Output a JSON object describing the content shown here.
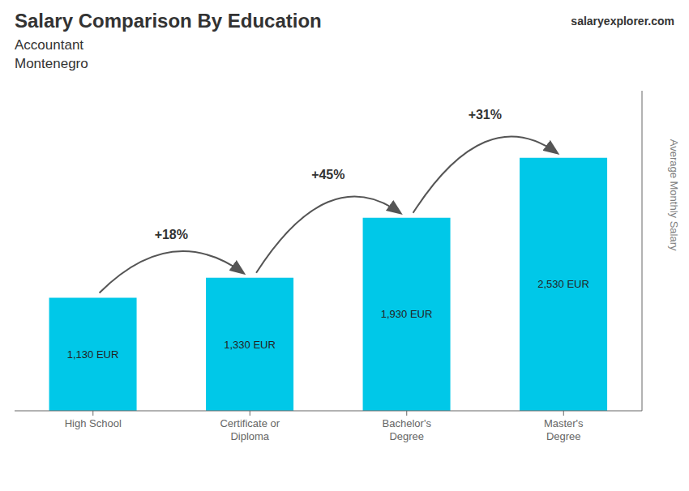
{
  "chart_data": {
    "type": "bar",
    "title": "Salary Comparison By Education",
    "subtitle": [
      "Accountant",
      "Montenegro"
    ],
    "source": "salaryexplorer.com",
    "ylabel": "Average Monthly Salary",
    "categories": [
      "High School",
      "Certificate or\nDiploma",
      "Bachelor's\nDegree",
      "Master's\nDegree"
    ],
    "values": [
      1130,
      1330,
      1930,
      2530
    ],
    "value_labels": [
      "1,130 EUR",
      "1,330 EUR",
      "1,930 EUR",
      "2,530 EUR"
    ],
    "data_labels": true,
    "annotations": [
      "+18%",
      "+45%",
      "+31%"
    ],
    "color": "#00c8e8",
    "ylim": [
      0,
      3200
    ],
    "grid": false,
    "tick_labels": "x"
  }
}
